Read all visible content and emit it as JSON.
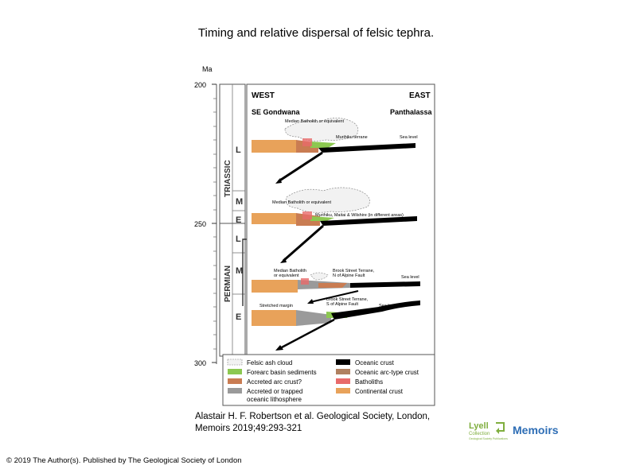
{
  "slide": {
    "title": "Timing and relative dispersal of felsic tephra.",
    "citation_line1": "Alastair H. F. Robertson et al. Geological Society, London,",
    "citation_line2": "Memoirs 2019;49:293-321",
    "copyright": "© 2019 The Author(s). Published by The Geological Society of London"
  },
  "logo": {
    "lyell": "Lyell",
    "collection": "Collection",
    "memoirs": "Memoirs",
    "tagline": "Geological Society Publications",
    "accent": "#2d6db5",
    "lyell_color": "#7fae3e"
  },
  "figure": {
    "axis_unit": "Ma",
    "ticks": [
      "200",
      "250",
      "300"
    ],
    "period_triassic": "TRIASSIC",
    "period_permian": "PERMIAN",
    "epochs": [
      "L",
      "M",
      "E",
      "L",
      "M",
      "E"
    ],
    "west": "WEST",
    "east": "EAST",
    "gondwana": "SE Gondwana",
    "panthalassa": "Panthalassa",
    "panel1": {
      "median": "Median Batholith or equivalent",
      "murihiku": "Murihiku terrane",
      "sea_level": "Sea level"
    },
    "panel2": {
      "median": "Median Batholith or equivalent",
      "terranes": "Murihiku, Maitai & Wilshire (in different areas)"
    },
    "panel3": {
      "median1": "Median Batholith",
      "median2": "or equivalent",
      "brook1": "Brook Street Terrane,",
      "brook2": "N of Alpine Fault",
      "sea_level": "Sea level"
    },
    "panel4": {
      "shelf": "Stretched margin",
      "brook1": "Brook Street Terrane,",
      "brook2": "S of Alpine Fault",
      "sea_level": "Sea level"
    },
    "legend": {
      "left": [
        "Felsic ash cloud",
        "Forearc basin sediments",
        "Accreted arc crust?",
        "Accreted or trapped",
        "oceanic lithosphere"
      ],
      "right": [
        "Oceanic crust",
        "Oceanic arc-type crust",
        "Batholiths",
        "Continental crust"
      ]
    },
    "colors": {
      "continental": "#e8a25a",
      "forearc": "#8cc850",
      "accreted": "#c97c52",
      "trapped": "#9a9a9a",
      "oceanic": "#000000",
      "batholith": "#e86a6a"
    }
  }
}
